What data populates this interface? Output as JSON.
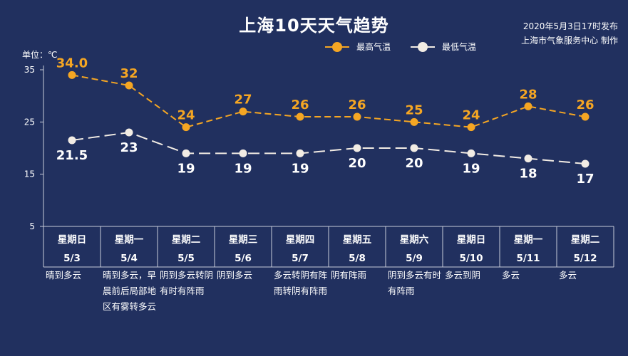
{
  "header": {
    "title": "上海10天天气趋势",
    "issued_line1": "2020年5月3日17时发布",
    "issued_line2": "上海市气象服务中心 制作"
  },
  "unit_label": "单位：℃",
  "colors": {
    "background": "#21305f",
    "high": "#f5a623",
    "low": "#f2ece4",
    "axis": "#c7cbd8"
  },
  "chart_data": {
    "type": "line",
    "unit": "℃",
    "ylim": [
      5,
      35
    ],
    "yticks": [
      5,
      15,
      25,
      35
    ],
    "grid": false,
    "legend_position": "top-right",
    "categories": [
      {
        "weekday": "星期日",
        "date": "5/3",
        "weather": "晴到多云"
      },
      {
        "weekday": "星期一",
        "date": "5/4",
        "weather": "晴到多云，早晨前后局部地区有雾转多云"
      },
      {
        "weekday": "星期二",
        "date": "5/5",
        "weather": "阴到多云转阴有时有阵雨"
      },
      {
        "weekday": "星期三",
        "date": "5/6",
        "weather": "阴到多云"
      },
      {
        "weekday": "星期四",
        "date": "5/7",
        "weather": "多云转阴有阵雨转阴有阵雨"
      },
      {
        "weekday": "星期五",
        "date": "5/8",
        "weather": "阴有阵雨"
      },
      {
        "weekday": "星期六",
        "date": "5/9",
        "weather": "阴到多云有时有阵雨"
      },
      {
        "weekday": "星期日",
        "date": "5/10",
        "weather": "多云到阴"
      },
      {
        "weekday": "星期一",
        "date": "5/11",
        "weather": "多云"
      },
      {
        "weekday": "星期二",
        "date": "5/12",
        "weather": "多云"
      }
    ],
    "series": [
      {
        "name": "最高气温",
        "values": [
          34.0,
          32,
          24,
          27,
          26,
          26,
          25,
          24,
          28,
          26
        ],
        "labels": [
          "34.0",
          "32",
          "24",
          "27",
          "26",
          "26",
          "25",
          "24",
          "28",
          "26"
        ]
      },
      {
        "name": "最低气温",
        "values": [
          21.5,
          23,
          19,
          19,
          19,
          20,
          20,
          19,
          18,
          17
        ],
        "labels": [
          "21.5",
          "23",
          "19",
          "19",
          "19",
          "20",
          "20",
          "19",
          "18",
          "17"
        ]
      }
    ]
  }
}
